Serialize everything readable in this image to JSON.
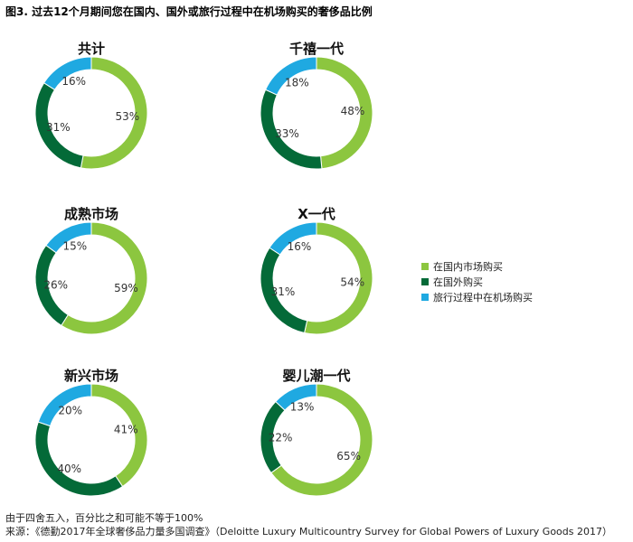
{
  "title": "图3. 过去12个月期间您在国内、国外或旅行过程中在机场购买的奢侈品比例",
  "colors": {
    "domestic": "#8cc63f",
    "abroad": "#046a38",
    "travel": "#1fa9e1"
  },
  "legend": [
    {
      "label": "在国内市场购买",
      "color": "#8cc63f"
    },
    {
      "label": "在国外购买",
      "color": "#046a38"
    },
    {
      "label": "旅行过程中在机场购买",
      "color": "#1fa9e1"
    }
  ],
  "footnote": {
    "line1": "由于四舍五入，百分比之和可能不等于100%",
    "line2": "来源：《德勤2017年全球奢侈品力量多国调查》（Deloitte Luxury Multicountry Survey for Global Powers of Luxury Goods 2017）"
  },
  "chart_data": [
    {
      "type": "pie",
      "title": "共计",
      "categories": [
        "在国内市场购买",
        "在国外购买",
        "旅行过程中在机场购买"
      ],
      "values": [
        53,
        31,
        16
      ],
      "labels": [
        "53%",
        "31%",
        "16%"
      ]
    },
    {
      "type": "pie",
      "title": "千禧一代",
      "categories": [
        "在国内市场购买",
        "在国外购买",
        "旅行过程中在机场购买"
      ],
      "values": [
        48,
        33,
        18
      ],
      "labels": [
        "48%",
        "33%",
        "18%"
      ]
    },
    {
      "type": "pie",
      "title": "成熟市场",
      "categories": [
        "在国内市场购买",
        "在国外购买",
        "旅行过程中在机场购买"
      ],
      "values": [
        59,
        26,
        15
      ],
      "labels": [
        "59%",
        "26%",
        "15%"
      ]
    },
    {
      "type": "pie",
      "title": "X一代",
      "categories": [
        "在国内市场购买",
        "在国外购买",
        "旅行过程中在机场购买"
      ],
      "values": [
        54,
        31,
        16
      ],
      "labels": [
        "54%",
        "31%",
        "16%"
      ]
    },
    {
      "type": "pie",
      "title": "新兴市场",
      "categories": [
        "在国内市场购买",
        "在国外购买",
        "旅行过程中在机场购买"
      ],
      "values": [
        41,
        40,
        20
      ],
      "labels": [
        "41%",
        "40%",
        "20%"
      ]
    },
    {
      "type": "pie",
      "title": "婴儿潮一代",
      "categories": [
        "在国内市场购买",
        "在国外购买",
        "旅行过程中在机场购买"
      ],
      "values": [
        65,
        22,
        13
      ],
      "labels": [
        "65%",
        "22%",
        "13%"
      ]
    }
  ]
}
